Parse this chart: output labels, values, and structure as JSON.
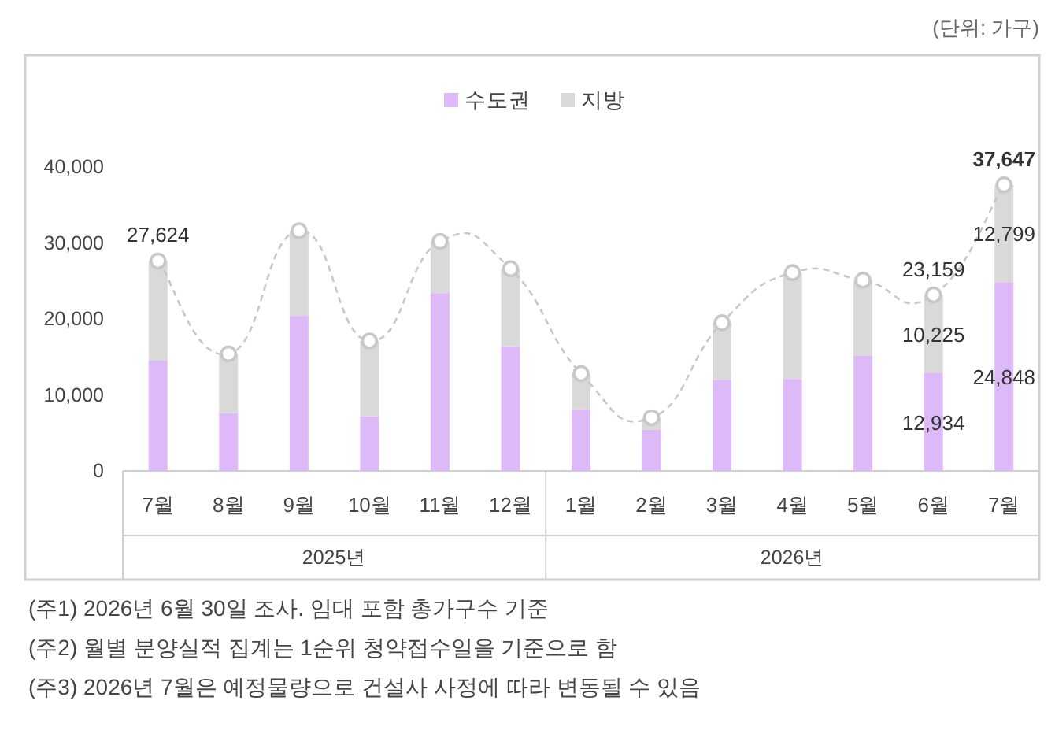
{
  "chart_data": {
    "type": "bar",
    "stacked": true,
    "categories": [
      "7월",
      "8월",
      "9월",
      "10월",
      "11월",
      "12월",
      "1월",
      "2월",
      "3월",
      "4월",
      "5월",
      "6월",
      "7월"
    ],
    "series": [
      {
        "name": "수도권",
        "color": "#ddbaf7",
        "values": [
          14500,
          7600,
          20400,
          7200,
          23400,
          16400,
          8100,
          5400,
          12000,
          12100,
          15200,
          12934,
          24848
        ],
        "value_labels": [
          null,
          null,
          null,
          null,
          null,
          null,
          null,
          null,
          null,
          null,
          null,
          "12,934",
          "24,848"
        ]
      },
      {
        "name": "지방",
        "color": "#d9d9d9",
        "values": [
          13100,
          7800,
          11200,
          9900,
          6800,
          10200,
          4700,
          1600,
          7500,
          14000,
          9900,
          10225,
          12799
        ],
        "value_labels": [
          null,
          null,
          null,
          null,
          null,
          null,
          null,
          null,
          null,
          null,
          null,
          "10,225",
          "12,799"
        ]
      },
      {
        "type": "line",
        "color": "#c8c8c8",
        "line_style": "dashed",
        "marker": "circle",
        "values": [
          27624,
          15400,
          31600,
          17100,
          30200,
          26600,
          12800,
          7000,
          19500,
          26100,
          25100,
          23159,
          37647
        ],
        "value_labels": [
          "27,624",
          null,
          null,
          null,
          null,
          null,
          null,
          null,
          null,
          null,
          null,
          "23,159",
          "37,647"
        ]
      }
    ],
    "ylim": [
      0,
      40000
    ],
    "yticks": [
      {
        "value": 0,
        "label": "0"
      },
      {
        "value": 10000,
        "label": "10,000"
      },
      {
        "value": 20000,
        "label": "20,000"
      },
      {
        "value": 30000,
        "label": "30,000"
      },
      {
        "value": 40000,
        "label": "40,000"
      }
    ],
    "grid": false,
    "legend": "top",
    "annotations": [
      "2025년",
      "2026년",
      "(단위: 가구)",
      "(주1) 2026년 6월 30일 조사. 임대 포함 총가구수 기준",
      "(주2) 월별 분양실적 집계는 1순위 청약접수일을 기준으로 함",
      "(주3) 2026년 7월은 예정물량으로 건설사 사정에 따라 변동될 수 있음"
    ]
  }
}
